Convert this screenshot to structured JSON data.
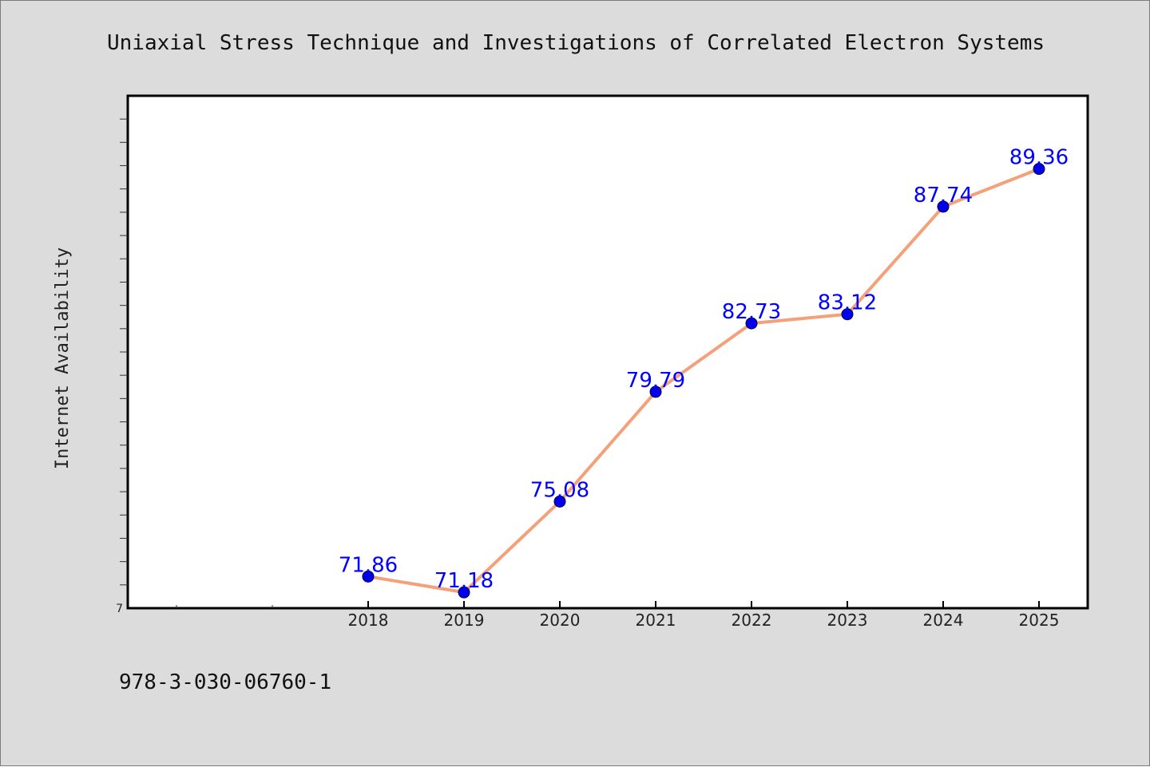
{
  "chart_data": {
    "type": "line",
    "title": "Uniaxial Stress Technique and Investigations of Correlated Electron Systems",
    "xlabel": "",
    "ylabel": "Internet Availability",
    "x_ticks": [
      "2018",
      "2019",
      "2020",
      "2021",
      "2022",
      "2023",
      "2024",
      "2025"
    ],
    "y_tick_labels": [
      "7"
    ],
    "ylim": [
      70.5,
      92.5
    ],
    "grid": false,
    "series": [
      {
        "x": [
          "2018",
          "2019",
          "2020",
          "2021",
          "2022",
          "2023",
          "2024",
          "2025"
        ],
        "values": [
          71.86,
          71.18,
          75.08,
          79.79,
          82.73,
          83.12,
          87.74,
          89.36
        ],
        "labels": [
          "71.86",
          "71.18",
          "75.08",
          "79.79",
          "82.73",
          "83.12",
          "87.74",
          "89.36"
        ]
      }
    ],
    "colors": {
      "line": "#f4a07a",
      "marker": "#0000ee",
      "label": "#0000ff"
    }
  },
  "footer": {
    "isbn": "978-3-030-06760-1"
  }
}
